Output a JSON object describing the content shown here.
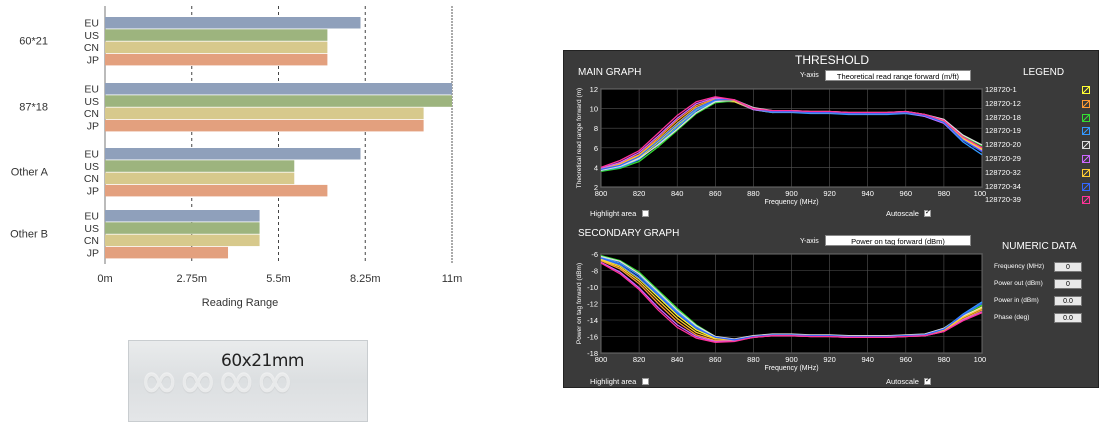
{
  "chart_data": [
    {
      "type": "bar",
      "orientation": "horizontal",
      "title": "",
      "xlabel": "Reading Range",
      "ylabel": "",
      "xlim": [
        0,
        11
      ],
      "ticks": [
        {
          "value": 0,
          "label": "0m"
        },
        {
          "value": 2.75,
          "label": "2.75m"
        },
        {
          "value": 5.5,
          "label": "5.5m"
        },
        {
          "value": 8.25,
          "label": "8.25m"
        },
        {
          "value": 11,
          "label": "11m"
        }
      ],
      "grid": "dashed vertical at 2.75m, 5.5m, 8.25m; solid at 11m",
      "groups": [
        {
          "name": "60*21",
          "bars": [
            {
              "label": "EU",
              "value": 8.1
            },
            {
              "label": "US",
              "value": 7.05
            },
            {
              "label": "CN",
              "value": 7.05
            },
            {
              "label": "JP",
              "value": 7.05
            }
          ]
        },
        {
          "name": "87*18",
          "bars": [
            {
              "label": "EU",
              "value": 11.0
            },
            {
              "label": "US",
              "value": 11.0
            },
            {
              "label": "CN",
              "value": 10.1
            },
            {
              "label": "JP",
              "value": 10.1
            }
          ]
        },
        {
          "name": "Other A",
          "bars": [
            {
              "label": "EU",
              "value": 8.1
            },
            {
              "label": "US",
              "value": 6.0
            },
            {
              "label": "CN",
              "value": 6.0
            },
            {
              "label": "JP",
              "value": 7.05
            }
          ]
        },
        {
          "name": "Other B",
          "bars": [
            {
              "label": "EU",
              "value": 4.9
            },
            {
              "label": "US",
              "value": 4.9
            },
            {
              "label": "CN",
              "value": 4.9
            },
            {
              "label": "JP",
              "value": 3.9
            }
          ]
        }
      ],
      "colors": {
        "EU": "#8fa0bb",
        "US": "#9db47e",
        "CN": "#d7c98c",
        "JP": "#e3a07e"
      }
    },
    {
      "type": "line",
      "title": "MAIN GRAPH",
      "xlabel": "Frequency (MHz)",
      "ylabel": "Theoretical read range forward (m)",
      "xlim": [
        800,
        1000
      ],
      "ylim": [
        2,
        12
      ],
      "xticks": [
        800,
        820,
        840,
        860,
        880,
        900,
        920,
        940,
        960,
        980,
        1000
      ],
      "yticks": [
        2,
        4,
        6,
        8,
        10,
        12
      ],
      "x": [
        800,
        810,
        820,
        830,
        840,
        850,
        860,
        870,
        880,
        890,
        900,
        910,
        920,
        930,
        940,
        950,
        960,
        970,
        980,
        990,
        1000
      ],
      "series": [
        {
          "name": "128720-1",
          "color": "#ffff33",
          "values": [
            3.8,
            4.2,
            5.0,
            6.6,
            8.3,
            9.9,
            10.8,
            10.7,
            9.9,
            9.6,
            9.7,
            9.6,
            9.6,
            9.5,
            9.5,
            9.5,
            9.6,
            9.3,
            8.6,
            6.9,
            5.8
          ]
        },
        {
          "name": "128720-12",
          "color": "#ff9933",
          "values": [
            3.9,
            4.4,
            5.3,
            7.0,
            8.8,
            10.3,
            11.0,
            10.8,
            10.0,
            9.7,
            9.8,
            9.7,
            9.7,
            9.6,
            9.6,
            9.6,
            9.7,
            9.4,
            8.7,
            7.0,
            6.0
          ]
        },
        {
          "name": "128720-18",
          "color": "#33dd33",
          "values": [
            3.6,
            3.9,
            4.6,
            6.1,
            7.8,
            9.5,
            10.6,
            10.8,
            10.0,
            9.7,
            9.7,
            9.6,
            9.6,
            9.5,
            9.5,
            9.5,
            9.6,
            9.3,
            8.8,
            7.2,
            6.2
          ]
        },
        {
          "name": "128720-19",
          "color": "#3399ff",
          "values": [
            3.7,
            4.0,
            4.8,
            6.4,
            8.1,
            9.8,
            10.8,
            10.8,
            9.9,
            9.6,
            9.6,
            9.5,
            9.5,
            9.4,
            9.4,
            9.4,
            9.5,
            9.2,
            8.5,
            6.6,
            5.3
          ]
        },
        {
          "name": "128720-20",
          "color": "#dddddd",
          "values": [
            3.7,
            4.1,
            4.9,
            6.3,
            7.9,
            9.6,
            10.7,
            10.9,
            10.1,
            9.8,
            9.8,
            9.7,
            9.7,
            9.6,
            9.6,
            9.6,
            9.7,
            9.4,
            8.9,
            7.3,
            6.3
          ]
        },
        {
          "name": "128720-29",
          "color": "#cc66ff",
          "values": [
            3.9,
            4.5,
            5.5,
            7.2,
            9.0,
            10.5,
            11.1,
            10.8,
            9.9,
            9.7,
            9.7,
            9.6,
            9.6,
            9.5,
            9.5,
            9.5,
            9.6,
            9.2,
            8.5,
            6.8,
            5.7
          ]
        },
        {
          "name": "128720-32",
          "color": "#ffcc33",
          "values": [
            3.8,
            4.3,
            5.2,
            6.8,
            8.5,
            10.1,
            10.9,
            10.8,
            10.0,
            9.7,
            9.7,
            9.6,
            9.6,
            9.5,
            9.5,
            9.5,
            9.6,
            9.3,
            8.7,
            7.0,
            5.9
          ]
        },
        {
          "name": "128720-34",
          "color": "#3366ff",
          "values": [
            3.8,
            4.2,
            5.1,
            6.7,
            8.4,
            10.0,
            10.9,
            10.9,
            10.0,
            9.7,
            9.7,
            9.6,
            9.6,
            9.5,
            9.5,
            9.5,
            9.6,
            9.3,
            8.6,
            6.8,
            5.6
          ]
        },
        {
          "name": "128720-39",
          "color": "#ff3399",
          "values": [
            4.0,
            4.7,
            5.7,
            7.5,
            9.3,
            10.7,
            11.2,
            10.9,
            10.0,
            9.8,
            9.8,
            9.7,
            9.7,
            9.6,
            9.6,
            9.6,
            9.7,
            9.4,
            8.8,
            7.1,
            6.0
          ]
        }
      ]
    },
    {
      "type": "line",
      "title": "SECONDARY GRAPH",
      "xlabel": "Frequency (MHz)",
      "ylabel": "Power on tag forward (dBm)",
      "xlim": [
        800,
        1000
      ],
      "ylim": [
        -18,
        -6
      ],
      "xticks": [
        800,
        820,
        840,
        860,
        880,
        900,
        920,
        940,
        960,
        980,
        1000
      ],
      "yticks": [
        -6,
        -8,
        -10,
        -12,
        -14,
        -16,
        -18
      ],
      "x": [
        800,
        810,
        820,
        830,
        840,
        850,
        860,
        870,
        880,
        890,
        900,
        910,
        920,
        930,
        940,
        950,
        960,
        970,
        980,
        990,
        1000
      ],
      "series": [
        {
          "name": "128720-1",
          "values": [
            -6.6,
            -7.4,
            -9.0,
            -11.2,
            -13.4,
            -15.2,
            -16.2,
            -16.4,
            -16.0,
            -15.8,
            -15.8,
            -15.9,
            -15.9,
            -16.0,
            -16.0,
            -16.0,
            -15.9,
            -15.8,
            -15.2,
            -13.6,
            -12.4
          ]
        },
        {
          "name": "128720-12",
          "values": [
            -6.8,
            -7.8,
            -9.6,
            -12.0,
            -14.2,
            -15.8,
            -16.5,
            -16.5,
            -16.1,
            -15.9,
            -15.9,
            -16.0,
            -16.0,
            -16.1,
            -16.1,
            -16.1,
            -16.0,
            -15.9,
            -15.3,
            -13.9,
            -12.8
          ]
        },
        {
          "name": "128720-18",
          "values": [
            -6.2,
            -6.8,
            -8.2,
            -10.4,
            -12.6,
            -14.6,
            -16.0,
            -16.4,
            -16.0,
            -15.8,
            -15.8,
            -15.9,
            -15.9,
            -16.0,
            -16.0,
            -16.0,
            -15.9,
            -15.8,
            -15.0,
            -13.4,
            -12.2
          ]
        },
        {
          "name": "128720-19",
          "values": [
            -6.4,
            -7.1,
            -8.6,
            -10.8,
            -13.0,
            -14.9,
            -16.1,
            -16.4,
            -16.0,
            -15.8,
            -15.8,
            -15.9,
            -15.9,
            -16.0,
            -16.0,
            -16.0,
            -15.9,
            -15.8,
            -15.1,
            -13.3,
            -11.8
          ]
        },
        {
          "name": "128720-20",
          "values": [
            -6.3,
            -6.9,
            -8.4,
            -10.6,
            -12.8,
            -14.7,
            -16.0,
            -16.3,
            -15.9,
            -15.7,
            -15.7,
            -15.8,
            -15.8,
            -15.9,
            -15.9,
            -15.9,
            -15.8,
            -15.7,
            -15.0,
            -13.5,
            -12.5
          ]
        },
        {
          "name": "128720-29",
          "values": [
            -7.0,
            -8.2,
            -10.1,
            -12.5,
            -14.6,
            -16.0,
            -16.6,
            -16.5,
            -16.1,
            -15.9,
            -15.9,
            -16.0,
            -16.0,
            -16.1,
            -16.1,
            -16.1,
            -16.0,
            -15.9,
            -15.4,
            -14.0,
            -13.0
          ]
        },
        {
          "name": "128720-32",
          "values": [
            -6.7,
            -7.6,
            -9.3,
            -11.6,
            -13.8,
            -15.5,
            -16.3,
            -16.4,
            -16.0,
            -15.8,
            -15.8,
            -15.9,
            -15.9,
            -16.0,
            -16.0,
            -16.0,
            -15.9,
            -15.8,
            -15.2,
            -13.7,
            -12.6
          ]
        },
        {
          "name": "128720-34",
          "values": [
            -6.5,
            -7.3,
            -8.9,
            -11.0,
            -13.2,
            -15.0,
            -16.1,
            -16.4,
            -16.0,
            -15.8,
            -15.8,
            -15.9,
            -15.9,
            -16.0,
            -16.0,
            -16.0,
            -15.9,
            -15.8,
            -15.1,
            -13.4,
            -12.0
          ]
        },
        {
          "name": "128720-39",
          "values": [
            -7.1,
            -8.4,
            -10.3,
            -12.8,
            -14.9,
            -16.2,
            -16.7,
            -16.6,
            -16.1,
            -15.9,
            -15.9,
            -16.0,
            -16.0,
            -16.1,
            -16.1,
            -16.1,
            -16.0,
            -15.9,
            -15.4,
            -14.1,
            -13.1
          ]
        }
      ]
    }
  ],
  "tag_label": "60x21mm",
  "panel": {
    "title": "THRESHOLD",
    "main_graph_label": "MAIN GRAPH",
    "legend_label": "LEGEND",
    "y_axis_label": "Y-axis",
    "main_y_select": "Theoretical read range forward (m/ft)",
    "secondary_graph_label": "SECONDARY GRAPH",
    "secondary_y_select": "Power on tag forward (dBm)",
    "highlight_area": "Highlight area",
    "autoscale": "Autoscale",
    "numeric_data_label": "NUMERIC DATA",
    "numeric": [
      {
        "label": "Frequency (MHz)",
        "value": "0"
      },
      {
        "label": "Power out (dBm)",
        "value": "0"
      },
      {
        "label": "Power in (dBm)",
        "value": "0.0"
      },
      {
        "label": "Phase (deg)",
        "value": "0.0"
      }
    ]
  }
}
